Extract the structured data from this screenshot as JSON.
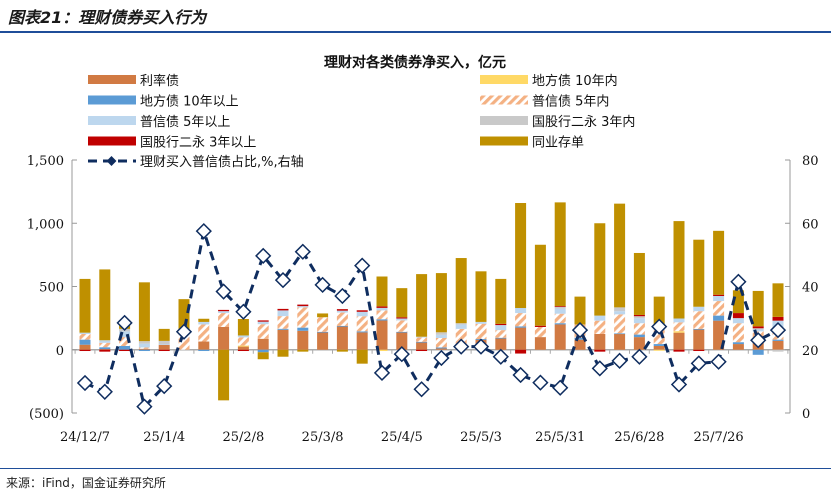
{
  "figure_title": "图表21：理财债券买入行为",
  "source": "来源：iFind，国金证券研究所",
  "colors": {
    "利率债": "#D17A43",
    "地方债 10年内": "#FFD966",
    "地方债 10年以上": "#5B9BD5",
    "普信债 5年内": "#F4B183",
    "普信债 5年以上": "#BDD7EE",
    "国股行二永 3年内": "#C9C9C9",
    "国股行二永 3年以上": "#C00000",
    "同业存单": "#BF9000",
    "line": "#0F2D5F",
    "negative_tick": "#C00000"
  },
  "chart_data": {
    "type": "bar",
    "stacked": true,
    "title": "理财对各类债券净买入，亿元",
    "x_tick_labels": [
      "24/12/7",
      "25/1/4",
      "25/2/8",
      "25/3/8",
      "25/4/5",
      "25/5/3",
      "25/5/31",
      "25/6/28",
      "25/7/26"
    ],
    "y_left": {
      "range": [
        -500,
        1500
      ],
      "ticks": [
        "(500)",
        "0",
        "500",
        "1,000",
        "1,500"
      ]
    },
    "y_right": {
      "range": [
        0,
        80
      ],
      "ticks": [
        "0",
        "20",
        "40",
        "60",
        "80"
      ]
    },
    "grid": false,
    "legend": "top",
    "series": [
      {
        "name": "利率债",
        "values": [
          40,
          5,
          0,
          8,
          40,
          0,
          65,
          180,
          25,
          87,
          158,
          150,
          137,
          184,
          137,
          231,
          137,
          58,
          10,
          10,
          80,
          90,
          175,
          100,
          200,
          80,
          125,
          125,
          100,
          30,
          135,
          160,
          230,
          45,
          65,
          70
        ]
      },
      {
        "name": "地方债 10年内",
        "values": [
          0,
          0,
          0,
          0,
          0,
          0,
          0,
          0,
          8,
          0,
          0,
          0,
          0,
          0,
          0,
          -10,
          0,
          0,
          0,
          0,
          0,
          0,
          0,
          0,
          0,
          0,
          0,
          0,
          0,
          -8,
          12,
          0,
          0,
          0,
          0,
          0
        ]
      },
      {
        "name": "地方债 10年以上",
        "values": [
          40,
          15,
          30,
          -10,
          0,
          0,
          -10,
          0,
          0,
          -20,
          8,
          25,
          5,
          5,
          8,
          10,
          5,
          5,
          8,
          5,
          5,
          5,
          10,
          0,
          10,
          15,
          0,
          5,
          20,
          15,
          0,
          5,
          40,
          15,
          -40,
          10
        ]
      },
      {
        "name": "普信债 5年内",
        "values": [
          45,
          35,
          70,
          10,
          0,
          140,
          135,
          110,
          65,
          115,
          100,
          160,
          115,
          105,
          120,
          70,
          90,
          35,
          75,
          150,
          120,
          60,
          105,
          80,
          75,
          105,
          105,
          150,
          90,
          110,
          70,
          140,
          115,
          150,
          80,
          90
        ]
      },
      {
        "name": "普信债 5年以上",
        "values": [
          10,
          20,
          45,
          30,
          5,
          0,
          20,
          15,
          15,
          20,
          45,
          10,
          0,
          15,
          35,
          20,
          15,
          5,
          25,
          35,
          15,
          40,
          40,
          0,
          40,
          0,
          40,
          25,
          40,
          40,
          30,
          35,
          40,
          40,
          15,
          60
        ]
      },
      {
        "name": "国股行二永 3年内",
        "values": [
          0,
          0,
          20,
          20,
          25,
          0,
          0,
          0,
          0,
          0,
          0,
          0,
          0,
          0,
          0,
          0,
          0,
          0,
          20,
          10,
          0,
          0,
          0,
          0,
          15,
          0,
          0,
          30,
          15,
          0,
          0,
          0,
          0,
          0,
          10,
          -15
        ]
      },
      {
        "name": "国股行二永 3年以上",
        "values": [
          -10,
          -15,
          -10,
          0,
          -10,
          0,
          0,
          10,
          -10,
          10,
          12,
          12,
          0,
          12,
          12,
          12,
          10,
          -10,
          0,
          0,
          0,
          10,
          -30,
          10,
          5,
          0,
          -15,
          0,
          10,
          0,
          -15,
          -10,
          10,
          40,
          15,
          30
        ]
      },
      {
        "name": "同业存单",
        "values": [
          425,
          560,
          70,
          465,
          95,
          260,
          25,
          -400,
          130,
          -55,
          -55,
          -15,
          30,
          -15,
          -110,
          236,
          230,
          495,
          468,
          515,
          400,
          355,
          830,
          640,
          820,
          220,
          730,
          820,
          490,
          225,
          770,
          530,
          505,
          180,
          280,
          265
        ]
      }
    ],
    "line": {
      "name": "理财买入普信债占比,%,右轴",
      "axis": "right",
      "values": [
        9.5,
        6.7,
        28.5,
        2,
        8.5,
        25.7,
        57.5,
        38.4,
        32,
        49.7,
        42,
        51,
        40.5,
        37,
        46.6,
        12.7,
        18.6,
        7.5,
        17.4,
        21,
        21,
        17.8,
        12,
        9.6,
        8,
        26.2,
        14.1,
        16.5,
        17.8,
        27.3,
        9,
        15.7,
        16.2,
        41.5,
        23,
        26.2
      ]
    }
  }
}
